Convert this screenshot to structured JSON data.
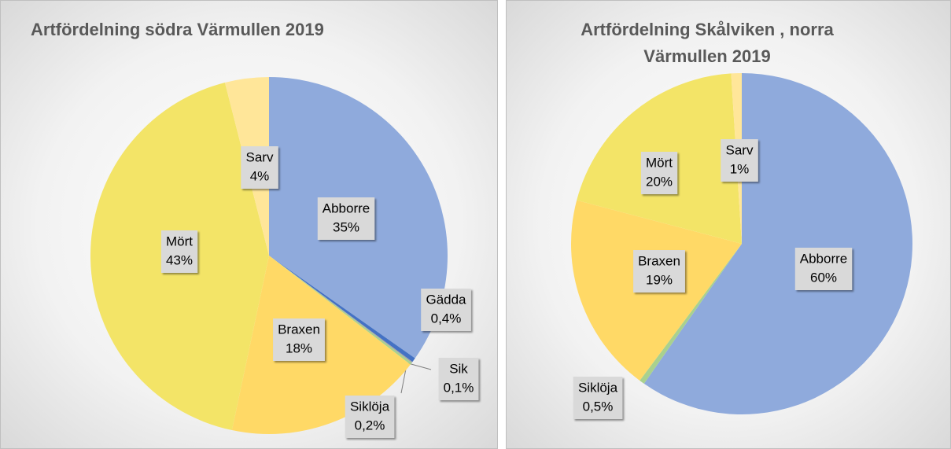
{
  "chart_data": [
    {
      "type": "pie",
      "title": "Artfördelning södra Värmullen 2019",
      "categories": [
        "Abborre",
        "Gädda",
        "Sik",
        "Siklöja",
        "Braxen",
        "Mört",
        "Sarv"
      ],
      "values": [
        35,
        0.4,
        0.1,
        0.2,
        18,
        43,
        4
      ],
      "value_labels": [
        "35%",
        "0,4%",
        "0,1%",
        "0,2%",
        "18%",
        "43%",
        "4%"
      ],
      "colors": [
        "#8faadc",
        "#4472c4",
        "#a5a5a5",
        "#a9d18e",
        "#ffd966",
        "#f3e467",
        "#ffe699"
      ]
    },
    {
      "type": "pie",
      "title": "Artfördelning Skålviken , norra Värmullen 2019",
      "categories": [
        "Abborre",
        "Siklöja",
        "Braxen",
        "Mört",
        "Sarv"
      ],
      "values": [
        60,
        0.5,
        19,
        20,
        1
      ],
      "value_labels": [
        "60%",
        "0,5%",
        "19%",
        "20%",
        "1%"
      ],
      "colors": [
        "#8faadc",
        "#a9d18e",
        "#ffd966",
        "#f3e467",
        "#ffe699"
      ]
    }
  ]
}
